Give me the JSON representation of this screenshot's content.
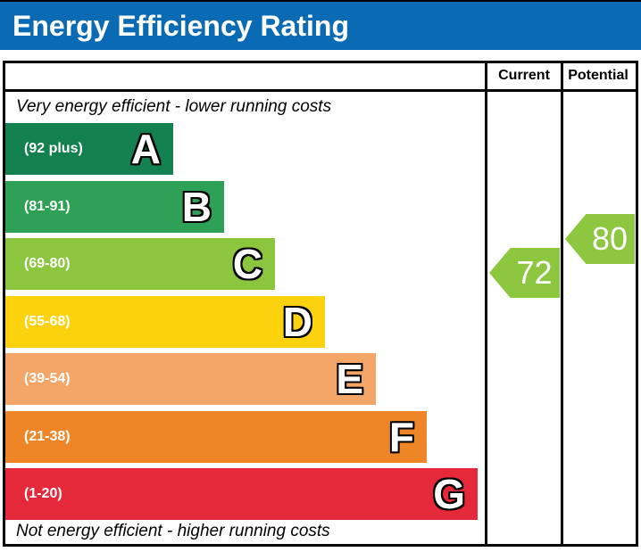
{
  "header": {
    "title": "Energy Efficiency Rating",
    "background_color": "#0a6bb4"
  },
  "table": {
    "columns": [
      "Current",
      "Potential"
    ],
    "top_note": "Very energy efficient - lower running costs",
    "bottom_note": "Not energy efficient - higher running costs"
  },
  "arrows": {
    "current": {
      "value": "72",
      "color": "#8dc63f"
    },
    "potential": {
      "value": "80",
      "color": "#8dc63f"
    }
  },
  "chart_data": {
    "type": "bar",
    "title": "Energy Efficiency Rating",
    "categories": [
      "A",
      "B",
      "C",
      "D",
      "E",
      "F",
      "G"
    ],
    "band_labels": [
      "(92 plus)",
      "(81-91)",
      "(69-80)",
      "(55-68)",
      "(39-54)",
      "(21-38)",
      "(1-20)"
    ],
    "band_colors": [
      "#13804f",
      "#2fa156",
      "#8cc63f",
      "#fcd20e",
      "#f3a667",
      "#ee8627",
      "#e4293b"
    ],
    "band_ranges": [
      [
        92,
        100
      ],
      [
        81,
        91
      ],
      [
        69,
        80
      ],
      [
        55,
        68
      ],
      [
        39,
        54
      ],
      [
        21,
        38
      ],
      [
        1,
        20
      ]
    ],
    "scale_min": 1,
    "scale_max": 100,
    "legend_position": "right-columns",
    "markers": [
      {
        "name": "Current",
        "value": 72,
        "band": "C",
        "color": "#8dc63f"
      },
      {
        "name": "Potential",
        "value": 80,
        "band": "C",
        "color": "#8dc63f"
      }
    ]
  }
}
